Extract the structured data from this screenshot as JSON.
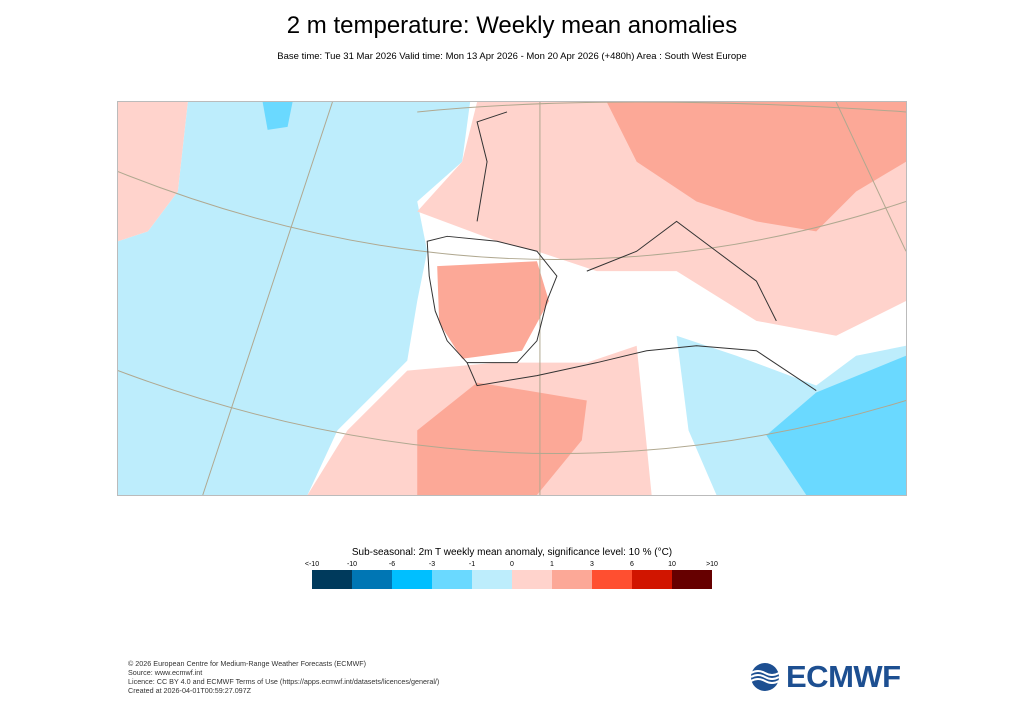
{
  "title": "2 m temperature: Weekly mean anomalies",
  "subtitle": "Base time: Tue 31 Mar 2026 Valid time: Mon 13 Apr 2026 - Mon 20 Apr 2026 (+480h) Area : South West Europe",
  "chart_data": {
    "type": "heatmap",
    "title": "2 m temperature: Weekly mean anomalies",
    "area": "South West Europe",
    "legend": {
      "title": "Sub-seasonal: 2m T weekly mean anomaly, significance level: 10 % (°C)",
      "ticks": [
        "<-10",
        "-10",
        "-6",
        "-3",
        "-1",
        "0",
        "1",
        "3",
        "6",
        "10",
        ">10"
      ],
      "bins": [
        {
          "range": "<-10 to -10",
          "color": "#003a5c"
        },
        {
          "range": "-10 to -6",
          "color": "#0076b4"
        },
        {
          "range": "-6 to -3",
          "color": "#00bfff"
        },
        {
          "range": "-3 to -1",
          "color": "#6ad9ff"
        },
        {
          "range": "-1 to 0",
          "color": "#bdedfc"
        },
        {
          "range": "0 to 1",
          "color": "#ffd3cc"
        },
        {
          "range": "1 to 3",
          "color": "#fca897"
        },
        {
          "range": "3 to 6",
          "color": "#ff4f30"
        },
        {
          "range": "6 to 10",
          "color": "#d11500"
        },
        {
          "range": "10 to >10",
          "color": "#660000"
        }
      ]
    }
  },
  "footer": {
    "copyright": "© 2026 European Centre for Medium-Range Weather Forecasts (ECMWF)",
    "source": "Source: www.ecmwf.int",
    "licence": "Licence: CC BY 4.0 and ECMWF Terms of Use (https://apps.ecmwf.int/datasets/licences/general/)",
    "created": "Created at 2026-04-01T00:59:27.097Z"
  },
  "logo": "ECMWF"
}
